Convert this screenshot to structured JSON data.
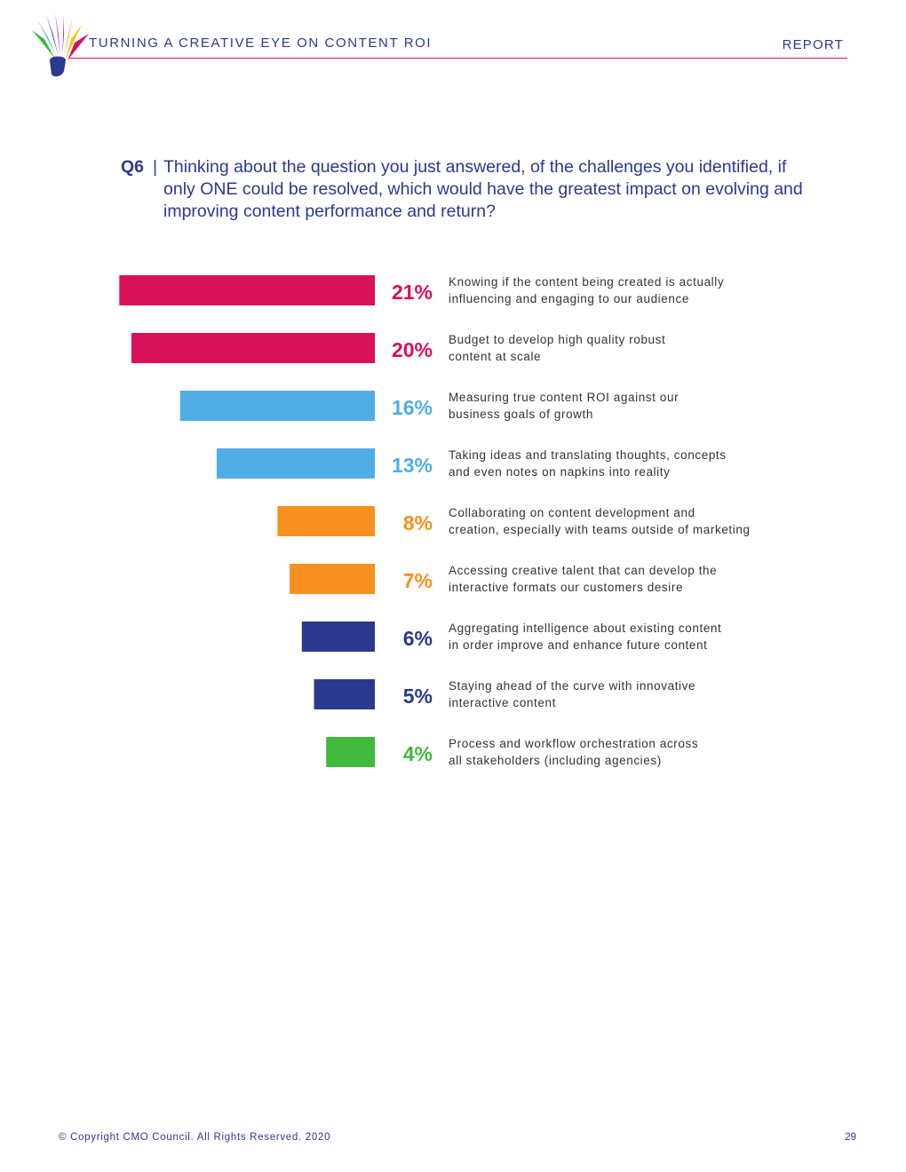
{
  "header": {
    "title": "TURNING A CREATIVE EYE ON CONTENT ROI",
    "section": "REPORT",
    "logo_icon": "cmo-council-fan-logo-icon"
  },
  "question": {
    "number": "Q6",
    "separator": "|",
    "text": "Thinking about the question you just answered, of the challenges you identified, if only ONE could be resolved, which would have the greatest impact on evolving and improving content performance and return?"
  },
  "chart_data": {
    "type": "bar",
    "orientation": "horizontal",
    "unit": "%",
    "xlim": [
      0,
      21
    ],
    "categories": [
      "Knowing if the content being created is actually influencing and engaging to our audience",
      "Budget to develop high quality robust content at scale",
      "Measuring true content ROI against our business goals of growth",
      "Taking ideas and translating thoughts, concepts and even notes on napkins into reality",
      "Collaborating on content development and creation, especially with teams outside of marketing",
      "Accessing creative talent that can develop the interactive formats our customers desire",
      "Aggregating intelligence about existing content in order improve and enhance future content",
      "Staying ahead of the curve with innovative interactive content",
      "Process and workflow orchestration across all stakeholders (including agencies)"
    ],
    "category_lines": [
      [
        "Knowing if the content being created is actually",
        "influencing and engaging to our audience"
      ],
      [
        "Budget to develop high quality robust",
        "content at scale"
      ],
      [
        "Measuring true content ROI against our",
        "business goals of growth"
      ],
      [
        "Taking ideas and translating thoughts, concepts",
        "and even notes on napkins into reality"
      ],
      [
        "Collaborating on content development and",
        "creation, especially with teams outside of marketing"
      ],
      [
        "Accessing creative talent that can develop the",
        "interactive formats our customers desire"
      ],
      [
        "Aggregating intelligence about existing content",
        "in order improve and enhance future content"
      ],
      [
        "Staying ahead of the curve with innovative",
        "interactive content"
      ],
      [
        "Process and workflow orchestration across",
        "all stakeholders (including agencies)"
      ]
    ],
    "values": [
      21,
      20,
      16,
      13,
      8,
      7,
      6,
      5,
      4
    ],
    "value_labels": [
      "21%",
      "20%",
      "16%",
      "13%",
      "8%",
      "7%",
      "6%",
      "5%",
      "4%"
    ],
    "colors": [
      "#d81159",
      "#d81159",
      "#51ade5",
      "#51ade5",
      "#f7901e",
      "#f7901e",
      "#2b3990",
      "#2b3990",
      "#40b93c"
    ],
    "grid": false,
    "legend": "none"
  },
  "footer": {
    "copyright": "© Copyright CMO Council. All Rights Reserved. 2020",
    "page": "29"
  }
}
